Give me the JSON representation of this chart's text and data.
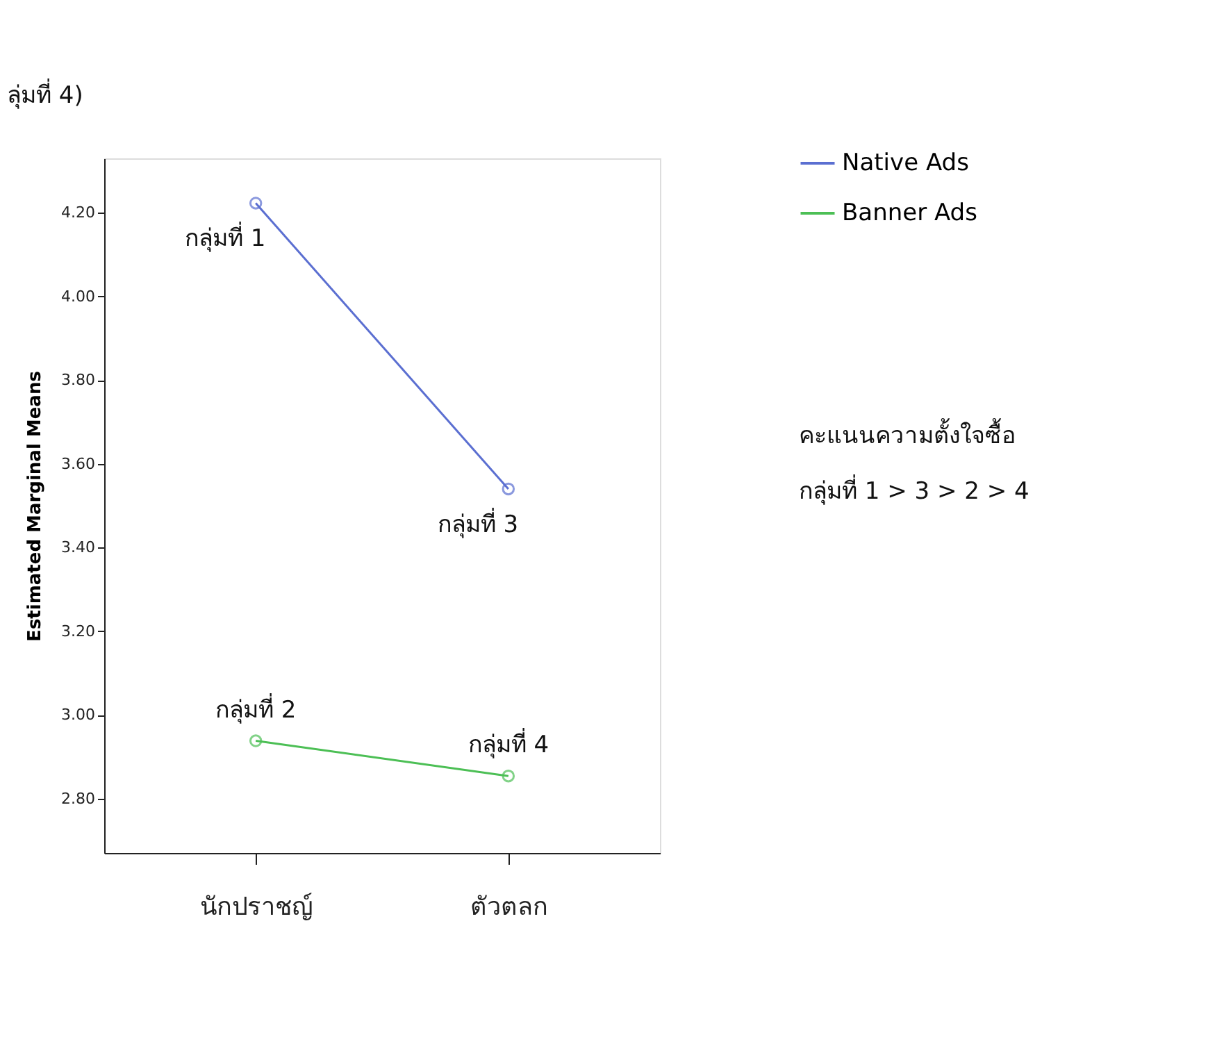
{
  "chart_data": {
    "type": "line",
    "ylabel": "Estimated Marginal Means",
    "categories": [
      "นักปราชญ์",
      "ตัวตลก"
    ],
    "series": [
      {
        "name": "Native Ads",
        "color": "#5b6fd1",
        "values": [
          4.223,
          3.54
        ]
      },
      {
        "name": "Banner Ads",
        "color": "#4cbf55",
        "values": [
          2.938,
          2.854
        ]
      }
    ],
    "ylim": [
      2.67,
      4.33
    ],
    "yticks": [
      {
        "value": 2.8,
        "label": "2.80"
      },
      {
        "value": 3.0,
        "label": "3.00"
      },
      {
        "value": 3.2,
        "label": "3.20"
      },
      {
        "value": 3.4,
        "label": "3.40"
      },
      {
        "value": 3.6,
        "label": "3.60"
      },
      {
        "value": 3.8,
        "label": "3.80"
      },
      {
        "value": 4.0,
        "label": "4.00"
      },
      {
        "value": 4.2,
        "label": "4.20"
      }
    ],
    "grid": false,
    "legend": "top right",
    "marker": "circle",
    "line_style": "solid",
    "annotations": [
      {
        "text": "กลุ่มที่ 1",
        "x": "นักปราชญ์",
        "y": 4.223
      },
      {
        "text": "กลุ่มที่ 3",
        "x": "ตัวตลก",
        "y": 3.54
      },
      {
        "text": "กลุ่มที่ 2",
        "x": "นักปราชญ์",
        "y": 2.938
      },
      {
        "text": "กลุ่มที่ 4",
        "x": "ตัวตลก",
        "y": 2.854
      },
      "ลุ่มที่ 4)",
      "คะแนนความตั้งใจซื้อ",
      "กลุ่มที่ 1 > 3 > 2 > 4"
    ]
  }
}
